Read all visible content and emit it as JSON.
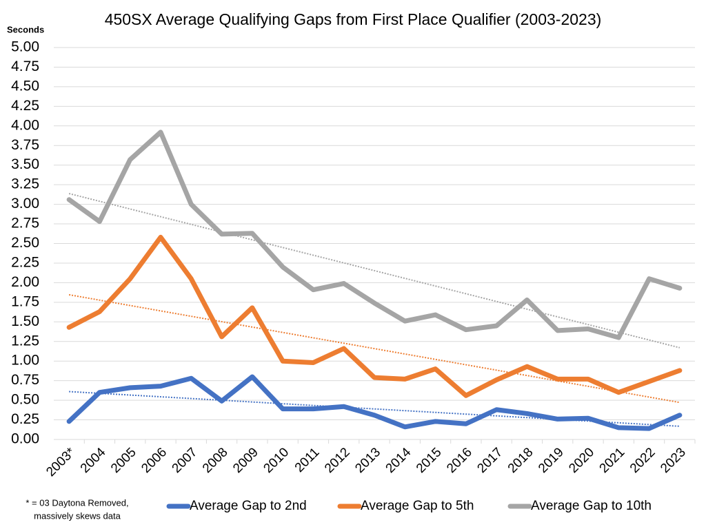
{
  "chart_data": {
    "type": "line",
    "title": "450SX Average Qualifying Gaps from First Place Qualifier (2003-2023)",
    "y_axis_label": "Seconds",
    "footnote": [
      "* = 03 Daytona Removed,",
      "massively skews data"
    ],
    "categories": [
      "2003*",
      "2004",
      "2005",
      "2006",
      "2007",
      "2008",
      "2009",
      "2010",
      "2011",
      "2012",
      "2013",
      "2014",
      "2015",
      "2016",
      "2017",
      "2018",
      "2019",
      "2020",
      "2021",
      "2022",
      "2023"
    ],
    "series": [
      {
        "name": "Average Gap to 2nd",
        "color": "#4472c4",
        "trendline": true,
        "values": [
          0.23,
          0.6,
          0.66,
          0.68,
          0.78,
          0.49,
          0.8,
          0.39,
          0.39,
          0.42,
          0.31,
          0.16,
          0.23,
          0.2,
          0.38,
          0.33,
          0.26,
          0.27,
          0.15,
          0.14,
          0.31
        ]
      },
      {
        "name": "Average Gap to 5th",
        "color": "#ed7d31",
        "trendline": true,
        "values": [
          1.43,
          1.63,
          2.05,
          2.58,
          2.05,
          1.31,
          1.68,
          1.0,
          0.98,
          1.16,
          0.79,
          0.77,
          0.9,
          0.56,
          0.76,
          0.93,
          0.77,
          0.77,
          0.6,
          0.74,
          0.88
        ]
      },
      {
        "name": "Average Gap to 10th",
        "color": "#a5a5a5",
        "trendline": true,
        "values": [
          3.06,
          2.78,
          3.57,
          3.92,
          3.0,
          2.62,
          2.63,
          2.2,
          1.91,
          1.99,
          1.74,
          1.51,
          1.59,
          1.4,
          1.45,
          1.78,
          1.39,
          1.41,
          1.3,
          2.05,
          1.93
        ]
      }
    ],
    "ylim": [
      0,
      5
    ],
    "yticks": [
      {
        "value": 0,
        "label": "0.00"
      },
      {
        "value": 0.25,
        "label": "0.25"
      },
      {
        "value": 0.5,
        "label": "0.50"
      },
      {
        "value": 0.75,
        "label": "0.75"
      },
      {
        "value": 1,
        "label": "1.00"
      },
      {
        "value": 1.25,
        "label": "1.25"
      },
      {
        "value": 1.5,
        "label": "1.50"
      },
      {
        "value": 1.75,
        "label": "1.75"
      },
      {
        "value": 2,
        "label": "2.00"
      },
      {
        "value": 2.25,
        "label": "2.25"
      },
      {
        "value": 2.5,
        "label": "2.50"
      },
      {
        "value": 2.75,
        "label": "2.75"
      },
      {
        "value": 3,
        "label": "3.00"
      },
      {
        "value": 3.25,
        "label": "3.25"
      },
      {
        "value": 3.5,
        "label": "3.50"
      },
      {
        "value": 3.75,
        "label": "3.75"
      },
      {
        "value": 4,
        "label": "4.00"
      },
      {
        "value": 4.25,
        "label": "4.25"
      },
      {
        "value": 4.5,
        "label": "4.50"
      },
      {
        "value": 4.75,
        "label": "4.75"
      },
      {
        "value": 5,
        "label": "5.00"
      }
    ],
    "grid": true,
    "legend": "bottom"
  }
}
